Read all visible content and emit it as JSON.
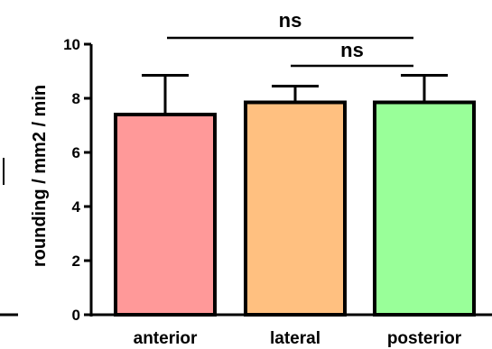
{
  "chart_data": {
    "type": "bar",
    "categories": [
      "anterior",
      "lateral",
      "posterior"
    ],
    "values": [
      7.4,
      7.85,
      7.85
    ],
    "errors": [
      1.45,
      0.6,
      1.0
    ],
    "colors": [
      "#ff9999",
      "#ffc080",
      "#99ff99"
    ],
    "ylabel": "rounding / mm2 / min",
    "xlabel": "",
    "ylim": [
      0,
      10
    ],
    "yticks": [
      "0",
      "2",
      "4",
      "6",
      "8",
      "10"
    ],
    "grid": false,
    "significance": [
      {
        "from": "anterior",
        "to": "posterior",
        "label": "ns"
      },
      {
        "from": "lateral",
        "to": "posterior",
        "label": "ns"
      }
    ]
  }
}
